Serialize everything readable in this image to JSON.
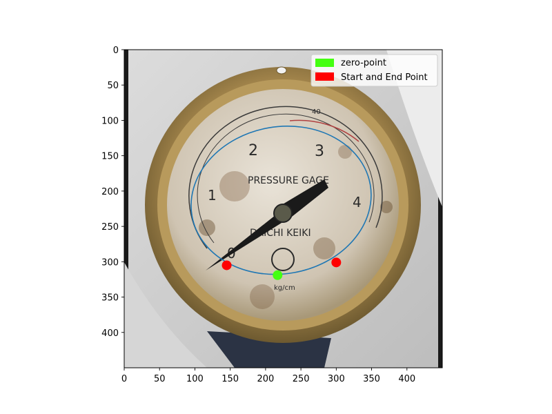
{
  "chart_data": {
    "type": "scatter",
    "background": "photo-of-pressure-gauge",
    "xlim": [
      0,
      450
    ],
    "ylim": [
      450,
      0
    ],
    "y_inverted": true,
    "grid": false,
    "x_ticks": [
      0,
      50,
      100,
      150,
      200,
      250,
      300,
      350,
      400
    ],
    "y_ticks": [
      0,
      50,
      100,
      150,
      200,
      250,
      300,
      350,
      400
    ],
    "x_tick_labels": [
      "0",
      "50",
      "100",
      "150",
      "200",
      "250",
      "300",
      "350",
      "400"
    ],
    "y_tick_labels": [
      "0",
      "50",
      "100",
      "150",
      "200",
      "250",
      "300",
      "350",
      "400"
    ],
    "ellipse": {
      "cx": 222,
      "cy": 213,
      "rx": 128,
      "ry": 104,
      "rotation_deg": -10,
      "color": "#1f77b4"
    },
    "points": [
      {
        "label": "zero-point",
        "x": 217,
        "y": 319,
        "color": "#44ff11"
      },
      {
        "label": "Start and End Point",
        "x": 145,
        "y": 305,
        "color": "#ff0000"
      },
      {
        "label": "Start and End Point",
        "x": 300,
        "y": 301,
        "color": "#ff0000"
      }
    ],
    "legend": {
      "placement": "top-right",
      "entries": [
        {
          "label": "zero-point",
          "color": "#44ff11"
        },
        {
          "label": "Start and End Point",
          "color": "#ff0000"
        }
      ]
    }
  },
  "gauge_text": {
    "title": "PRESSURE GAGE",
    "brand": "DAICHI KEIKI",
    "numerals": [
      "0",
      "1",
      "2",
      "3",
      "4"
    ],
    "red_scale": "40",
    "unit": "kg/cm"
  }
}
